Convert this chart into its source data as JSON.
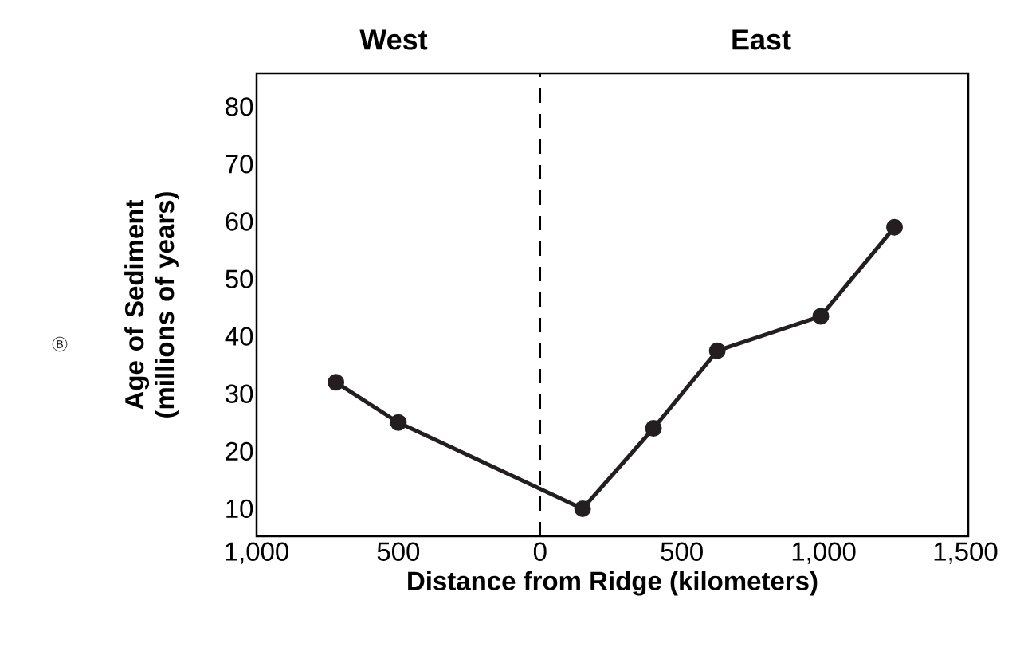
{
  "chart_data": {
    "type": "line",
    "x": [
      -720,
      -500,
      150,
      400,
      625,
      990,
      1250
    ],
    "values": [
      32,
      25,
      10,
      24,
      37.5,
      43.5,
      59
    ],
    "color": "#231f20",
    "marker": "circle",
    "line_style": "solid",
    "xlim": [
      -1000,
      1510
    ],
    "ylim": [
      5.2,
      85.8
    ],
    "xticks": [
      {
        "value": -1000,
        "label": "1,000"
      },
      {
        "value": -500,
        "label": "500"
      },
      0,
      500,
      {
        "value": 1000,
        "label": "1,000"
      },
      {
        "value": 1500,
        "label": "1,500"
      }
    ],
    "yticks": [
      10,
      20,
      30,
      40,
      50,
      60,
      70,
      80
    ],
    "xlabel": "Distance from Ridge (kilometers)",
    "ylabel": "Age of Sediment (millions of years)",
    "ref_lines": [
      {
        "axis": "x",
        "value": 0,
        "line_style": "dashed"
      }
    ],
    "annotations": [
      "West",
      "East",
      "B"
    ]
  }
}
